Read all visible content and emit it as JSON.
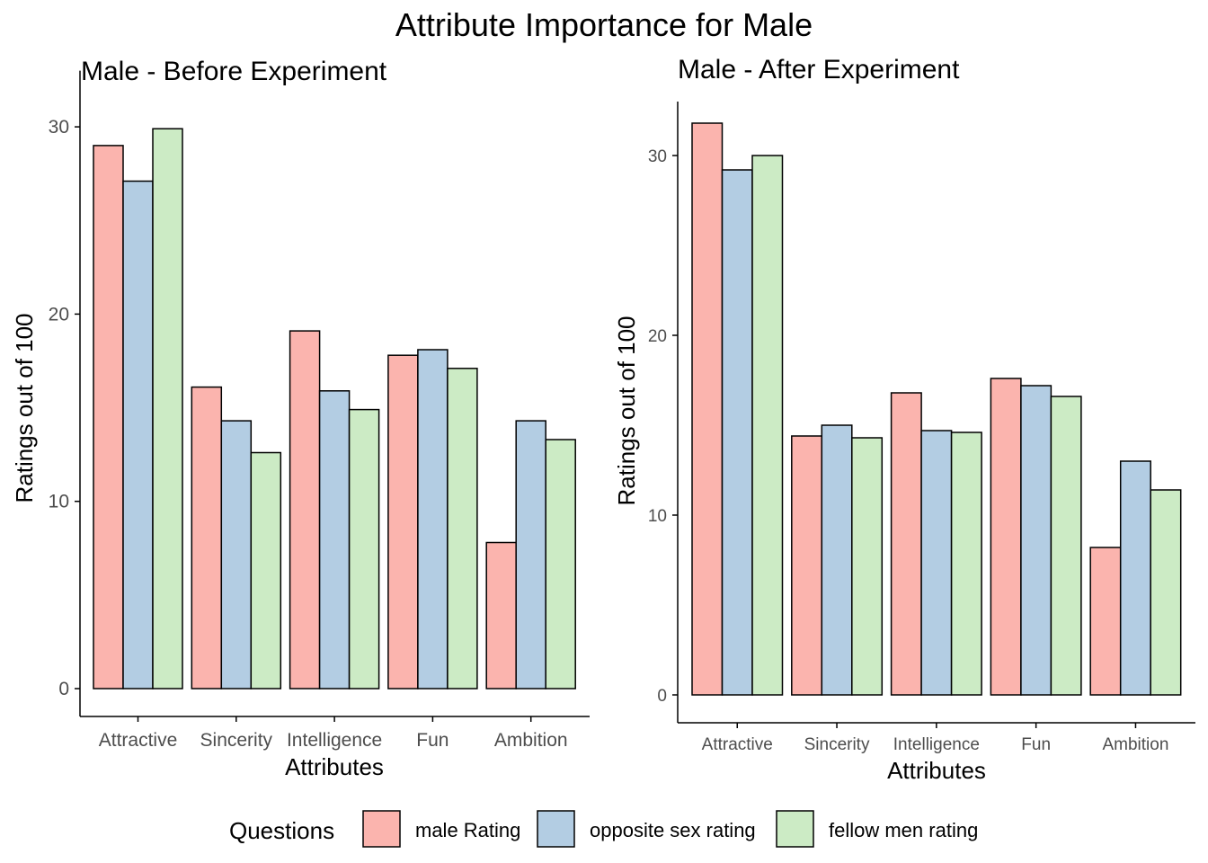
{
  "title": "Attribute Importance for Male",
  "colors": {
    "male Rating": "#FBB4AE",
    "opposite sex rating": "#B3CDE3",
    "fellow men rating": "#CCEBC5",
    "bar_stroke": "#000000",
    "axis": "#000000",
    "tick_text": "#4d4d4d"
  },
  "legend": {
    "title": "Questions",
    "position": "bottom",
    "items": [
      "male Rating",
      "opposite sex rating",
      "fellow men rating"
    ]
  },
  "chart_data": [
    {
      "type": "bar",
      "title": "Male - Before Experiment",
      "xlabel": "Attributes",
      "ylabel": "Ratings out of 100",
      "categories": [
        "Attractive",
        "Sincerity",
        "Intelligence",
        "Fun",
        "Ambition"
      ],
      "ylim": [
        0,
        30
      ],
      "yticks": [
        0,
        10,
        20,
        30
      ],
      "grid": false,
      "series": [
        {
          "name": "male Rating",
          "values": [
            29.0,
            16.1,
            19.1,
            17.8,
            7.8
          ]
        },
        {
          "name": "opposite sex rating",
          "values": [
            27.1,
            14.3,
            15.9,
            18.1,
            14.3
          ]
        },
        {
          "name": "fellow men rating",
          "values": [
            29.9,
            12.6,
            14.9,
            17.1,
            13.3
          ]
        }
      ]
    },
    {
      "type": "bar",
      "title": "Male - After Experiment",
      "xlabel": "Attributes",
      "ylabel": "Ratings out of 100",
      "categories": [
        "Attractive",
        "Sincerity",
        "Intelligence",
        "Fun",
        "Ambition"
      ],
      "ylim": [
        0,
        30
      ],
      "yticks": [
        0,
        10,
        20,
        30
      ],
      "grid": false,
      "series": [
        {
          "name": "male Rating",
          "values": [
            31.8,
            14.4,
            16.8,
            17.6,
            8.2
          ]
        },
        {
          "name": "opposite sex rating",
          "values": [
            29.2,
            15.0,
            14.7,
            17.2,
            13.0
          ]
        },
        {
          "name": "fellow men rating",
          "values": [
            30.0,
            14.3,
            14.6,
            16.6,
            11.4
          ]
        }
      ]
    }
  ]
}
